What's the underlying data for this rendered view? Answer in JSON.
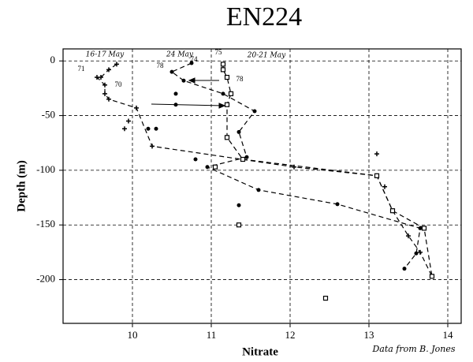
{
  "chart_data": {
    "type": "line",
    "title": "EN224",
    "xlabel": "Nitrate",
    "ylabel": "Depth (m)",
    "source": "Data from B. Jones",
    "xlim": [
      9.12,
      14.17
    ],
    "ylim": [
      -240,
      11
    ],
    "xticks": [
      10,
      11,
      12,
      13,
      14
    ],
    "yticks": [
      0,
      -50,
      -100,
      -150,
      -200
    ],
    "grid": true,
    "series": [
      {
        "name": "16-17 May",
        "color": "#000000",
        "marker": "plus",
        "x": [
          9.8,
          9.7,
          9.6,
          9.55,
          9.65,
          9.65,
          9.7,
          10.05,
          10.25,
          12.05,
          13.1,
          13.3,
          13.5,
          13.65,
          13.8
        ],
        "values": [
          -3,
          -8,
          -15,
          -15,
          -22,
          -30,
          -35,
          -43,
          -78,
          -97,
          -105,
          -137,
          -160,
          -175,
          -197
        ]
      },
      {
        "name": "24 May",
        "color": "#000000",
        "marker": "dot",
        "x": [
          10.75,
          10.5,
          10.65,
          11.15,
          11.55,
          11.35,
          11.45,
          10.95,
          11.6,
          12.6,
          13.65,
          13.6,
          13.45
        ],
        "values": [
          -2,
          -10,
          -18,
          -30,
          -46,
          -65,
          -88,
          -97,
          -118,
          -131,
          -153,
          -176,
          -190
        ]
      },
      {
        "name": "20-21 May",
        "color": "#000000",
        "marker": "square",
        "x": [
          11.15,
          11.15,
          11.2,
          11.25,
          11.2,
          11.2,
          11.4,
          13.1,
          13.3,
          13.7,
          13.8
        ],
        "values": [
          -3,
          -8,
          -15,
          -30,
          -40,
          -70,
          -90,
          -105,
          -137,
          -153,
          -197
        ]
      }
    ],
    "points": [
      {
        "x": 9.9,
        "y": -62,
        "marker": "plus"
      },
      {
        "x": 9.95,
        "y": -55,
        "marker": "plus"
      },
      {
        "x": 10.2,
        "y": -62,
        "marker": "dot"
      },
      {
        "x": 10.3,
        "y": -62,
        "marker": "dot"
      },
      {
        "x": 10.55,
        "y": -30,
        "marker": "dot"
      },
      {
        "x": 10.55,
        "y": -40,
        "marker": "dot"
      },
      {
        "x": 10.8,
        "y": -90,
        "marker": "dot"
      },
      {
        "x": 11.05,
        "y": -97,
        "marker": "square"
      },
      {
        "x": 11.35,
        "y": -132,
        "marker": "dot"
      },
      {
        "x": 11.35,
        "y": -150,
        "marker": "square"
      },
      {
        "x": 12.45,
        "y": -217,
        "marker": "square"
      },
      {
        "x": 13.1,
        "y": -85,
        "marker": "plus"
      },
      {
        "x": 13.2,
        "y": -115,
        "marker": "plus"
      }
    ],
    "annotations": [
      "71",
      "70",
      "78",
      "74",
      "75",
      "78"
    ]
  }
}
